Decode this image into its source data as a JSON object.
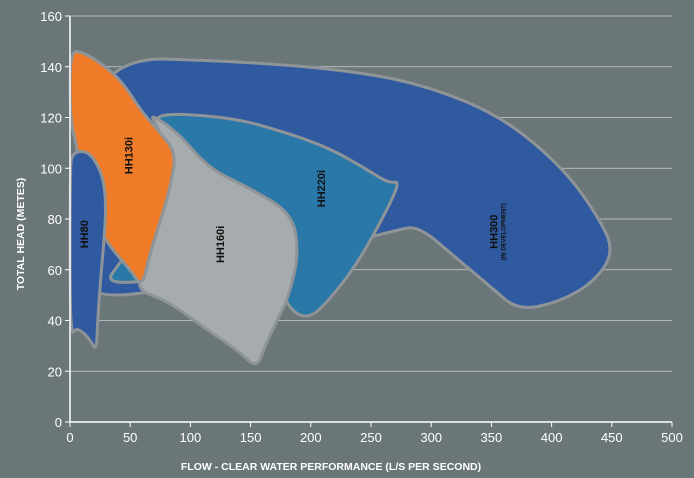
{
  "chart_data": {
    "type": "area",
    "title": "",
    "xlabel": "FLOW - CLEAR WATER PERFORMANCE (L/S PER SECOND)",
    "ylabel": "TOTAL HEAD (METES)",
    "xlim": [
      0,
      500
    ],
    "ylim": [
      0,
      160
    ],
    "xticks": [
      0,
      50,
      100,
      150,
      200,
      250,
      300,
      350,
      400,
      450,
      500
    ],
    "yticks": [
      0,
      20,
      40,
      60,
      80,
      100,
      120,
      140,
      160
    ],
    "grid": "horizontal",
    "regions": [
      {
        "name": "HH300",
        "note": "(IN DEVELOPMENT)",
        "color": "#2f5aa0",
        "label_at": [
          355,
          75
        ],
        "boundary": [
          [
            10,
            144
          ],
          [
            150,
            142
          ],
          [
            240,
            138
          ],
          [
            300,
            132
          ],
          [
            360,
            120
          ],
          [
            410,
            100
          ],
          [
            440,
            80
          ],
          [
            452,
            67
          ],
          [
            435,
            55
          ],
          [
            405,
            47
          ],
          [
            372,
            44
          ],
          [
            350,
            53
          ],
          [
            320,
            65
          ],
          [
            290,
            77
          ],
          [
            272,
            76
          ],
          [
            30,
            45
          ],
          [
            10,
            60
          ]
        ]
      },
      {
        "name": "HH220i",
        "note": "",
        "color": "#2a78a8",
        "label_at": [
          212,
          92
        ],
        "boundary": [
          [
            70,
            122
          ],
          [
            135,
            120
          ],
          [
            180,
            114
          ],
          [
            215,
            108
          ],
          [
            245,
            100
          ],
          [
            265,
            94
          ],
          [
            275,
            95
          ],
          [
            255,
            76
          ],
          [
            235,
            60
          ],
          [
            215,
            48
          ],
          [
            200,
            41
          ],
          [
            185,
            43
          ],
          [
            175,
            52
          ],
          [
            165,
            58
          ],
          [
            155,
            62
          ],
          [
            110,
            60
          ],
          [
            60,
            55
          ],
          [
            30,
            55
          ],
          [
            40,
            62
          ],
          [
            70,
            80
          ],
          [
            80,
            100
          ],
          [
            75,
            115
          ]
        ]
      },
      {
        "name": "HH160i",
        "note": "",
        "color": "#a6abae",
        "label_at": [
          128,
          70
        ],
        "boundary": [
          [
            65,
            122
          ],
          [
            90,
            114
          ],
          [
            115,
            100
          ],
          [
            150,
            92
          ],
          [
            185,
            82
          ],
          [
            190,
            66
          ],
          [
            182,
            50
          ],
          [
            172,
            40
          ],
          [
            162,
            30
          ],
          [
            155,
            21
          ],
          [
            140,
            28
          ],
          [
            115,
            36
          ],
          [
            80,
            48
          ],
          [
            55,
            52
          ],
          [
            62,
            62
          ],
          [
            72,
            80
          ],
          [
            78,
            100
          ],
          [
            75,
            115
          ]
        ]
      },
      {
        "name": "HH130i",
        "note": "",
        "color": "#f07c2a",
        "label_at": [
          52,
          105
        ],
        "boundary": [
          [
            0,
            146
          ],
          [
            10,
            146
          ],
          [
            30,
            140
          ],
          [
            45,
            133
          ],
          [
            60,
            122
          ],
          [
            75,
            114
          ],
          [
            88,
            106
          ],
          [
            84,
            94
          ],
          [
            77,
            82
          ],
          [
            66,
            66
          ],
          [
            60,
            53
          ],
          [
            50,
            60
          ],
          [
            35,
            68
          ],
          [
            20,
            79
          ],
          [
            12,
            90
          ],
          [
            8,
            100
          ],
          [
            5,
            110
          ],
          [
            0,
            120
          ]
        ]
      },
      {
        "name": "HH80",
        "note": "",
        "color": "#2f5aa0",
        "label_at": [
          15,
          74
        ],
        "boundary": [
          [
            2,
            106
          ],
          [
            12,
            107
          ],
          [
            20,
            104
          ],
          [
            28,
            96
          ],
          [
            30,
            84
          ],
          [
            28,
            70
          ],
          [
            25,
            54
          ],
          [
            23,
            40
          ],
          [
            22,
            28
          ],
          [
            17,
            32
          ],
          [
            12,
            35
          ],
          [
            5,
            37
          ],
          [
            0,
            34
          ],
          [
            0,
            100
          ]
        ]
      }
    ]
  }
}
